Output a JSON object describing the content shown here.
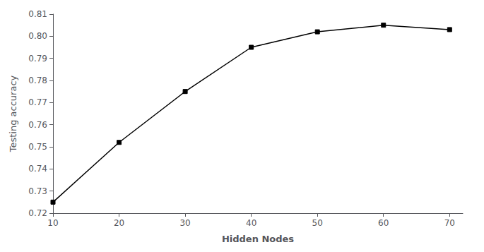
{
  "chart_data": {
    "type": "line",
    "x": [
      10,
      20,
      30,
      40,
      50,
      60,
      70
    ],
    "values": [
      0.725,
      0.752,
      0.775,
      0.795,
      0.802,
      0.805,
      0.803
    ],
    "xlabel": "Hidden Nodes",
    "ylabel": "Testing accuracy",
    "xlim": [
      10,
      72
    ],
    "ylim": [
      0.72,
      0.81
    ],
    "xticks": [
      10,
      20,
      30,
      40,
      50,
      60,
      70
    ],
    "yticks": [
      0.72,
      0.73,
      0.74,
      0.75,
      0.76,
      0.77,
      0.78,
      0.79,
      {
        "value": 0.8,
        "label": "0.80"
      },
      0.81
    ],
    "grid": false,
    "color": "#000000",
    "marker": "square"
  }
}
